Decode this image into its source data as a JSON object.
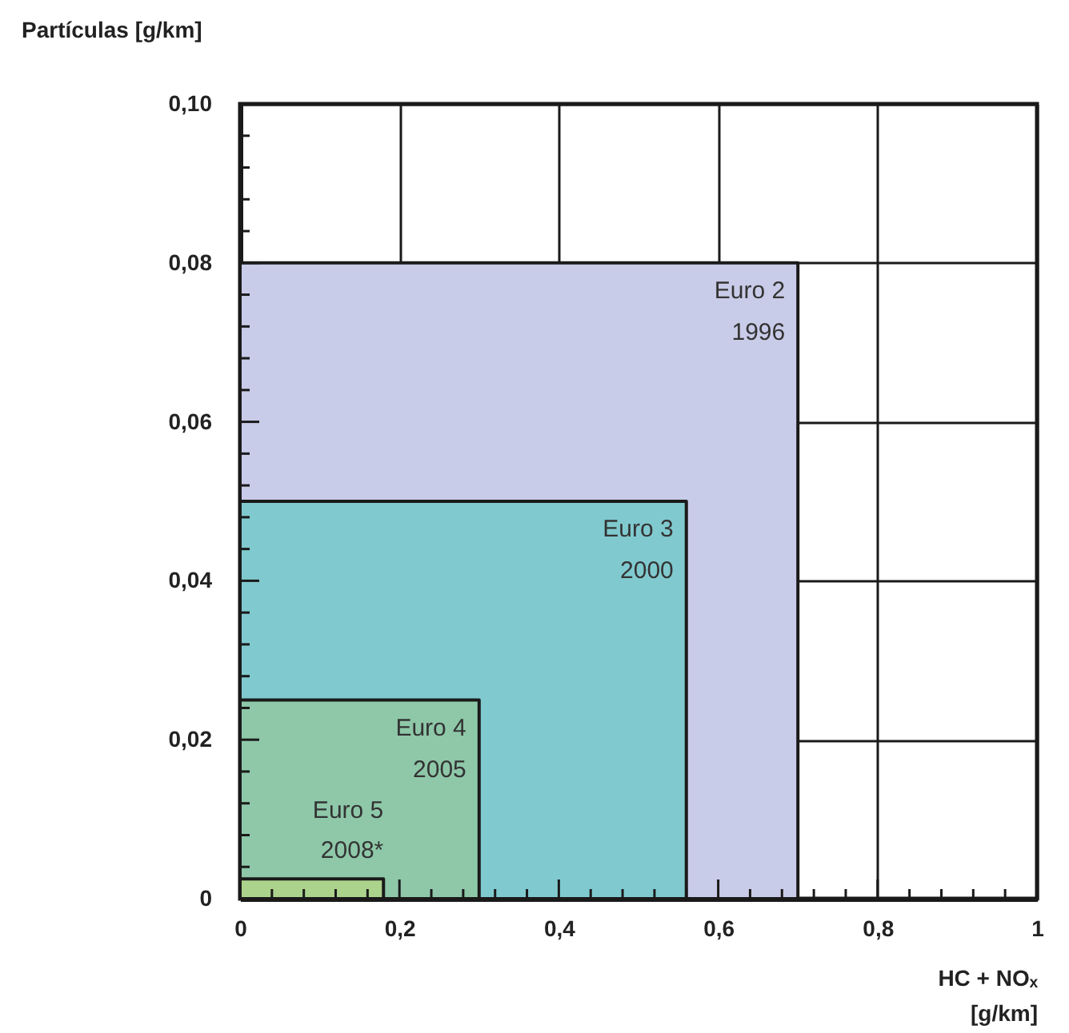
{
  "chart_data": {
    "type": "area",
    "ylabel": "Partículas [g/km]",
    "xlabel": "HC + NOₓ\n[g/km]",
    "series": [
      {
        "name": "Euro 2",
        "color": "#c9cce8",
        "x": [
          0,
          0.7
        ],
        "values": [
          0.08,
          0.08
        ]
      },
      {
        "name": "Euro 3",
        "color": "#80cacf",
        "x": [
          0,
          0.56
        ],
        "values": [
          0.05,
          0.05
        ]
      },
      {
        "name": "Euro 4",
        "color": "#8ec8a9",
        "x": [
          0,
          0.3
        ],
        "values": [
          0.025,
          0.025
        ]
      },
      {
        "name": "Euro 5",
        "color": "#acd38c",
        "x": [
          0,
          0.18
        ],
        "values": [
          0.0025,
          0.0025
        ]
      }
    ],
    "annotations": [
      {
        "text": "1996",
        "x": 0.7,
        "y": 0.08
      },
      {
        "text": "2000",
        "x": 0.56,
        "y": 0.05
      },
      {
        "text": "2005",
        "x": 0.3,
        "y": 0.025
      },
      {
        "text": "2008*",
        "x": 0.18,
        "y": 0.0025
      }
    ],
    "xlim": [
      0,
      1
    ],
    "ylim": [
      0,
      0.1
    ],
    "xticks": [
      0,
      {
        "value": 0.04,
        "label": null
      },
      {
        "value": 0.08,
        "label": null
      },
      {
        "value": 0.12,
        "label": null
      },
      {
        "value": 0.16,
        "label": null
      },
      {
        "value": 0.2,
        "label": "0,2"
      },
      {
        "value": 0.24,
        "label": null
      },
      {
        "value": 0.28,
        "label": null
      },
      {
        "value": 0.32,
        "label": null
      },
      {
        "value": 0.36,
        "label": null
      },
      {
        "value": 0.4,
        "label": "0,4"
      },
      {
        "value": 0.44,
        "label": null
      },
      {
        "value": 0.48,
        "label": null
      },
      {
        "value": 0.52,
        "label": null
      },
      {
        "value": 0.56,
        "label": null
      },
      {
        "value": 0.6,
        "label": "0,6"
      },
      {
        "value": 0.64,
        "label": null
      },
      {
        "value": 0.68,
        "label": null
      },
      {
        "value": 0.72,
        "label": null
      },
      {
        "value": 0.76,
        "label": null
      },
      {
        "value": 0.8,
        "label": "0,8"
      },
      {
        "value": 0.84,
        "label": null
      },
      {
        "value": 0.88,
        "label": null
      },
      {
        "value": 0.92,
        "label": null
      },
      {
        "value": 0.96,
        "label": null
      },
      1
    ],
    "yticks": [
      0,
      {
        "value": 0.004,
        "label": null
      },
      {
        "value": 0.008,
        "label": null
      },
      {
        "value": 0.012,
        "label": null
      },
      {
        "value": 0.016,
        "label": null
      },
      {
        "value": 0.02,
        "label": "0,02"
      },
      {
        "value": 0.024,
        "label": null
      },
      {
        "value": 0.028,
        "label": null
      },
      {
        "value": 0.032,
        "label": null
      },
      {
        "value": 0.036,
        "label": null
      },
      {
        "value": 0.04,
        "label": "0,04"
      },
      {
        "value": 0.044,
        "label": null
      },
      {
        "value": 0.048,
        "label": null
      },
      {
        "value": 0.052,
        "label": null
      },
      {
        "value": 0.056,
        "label": null
      },
      {
        "value": 0.06,
        "label": "0,06"
      },
      {
        "value": 0.064,
        "label": null
      },
      {
        "value": 0.068,
        "label": null
      },
      {
        "value": 0.072,
        "label": null
      },
      {
        "value": 0.076,
        "label": null
      },
      {
        "value": 0.08,
        "label": "0,08"
      },
      {
        "value": 0.084,
        "label": null
      },
      {
        "value": 0.088,
        "label": null
      },
      {
        "value": 0.092,
        "label": null
      },
      {
        "value": 0.096,
        "label": null
      },
      {
        "value": 0.1,
        "label": "0,10"
      }
    ],
    "grid": true
  }
}
